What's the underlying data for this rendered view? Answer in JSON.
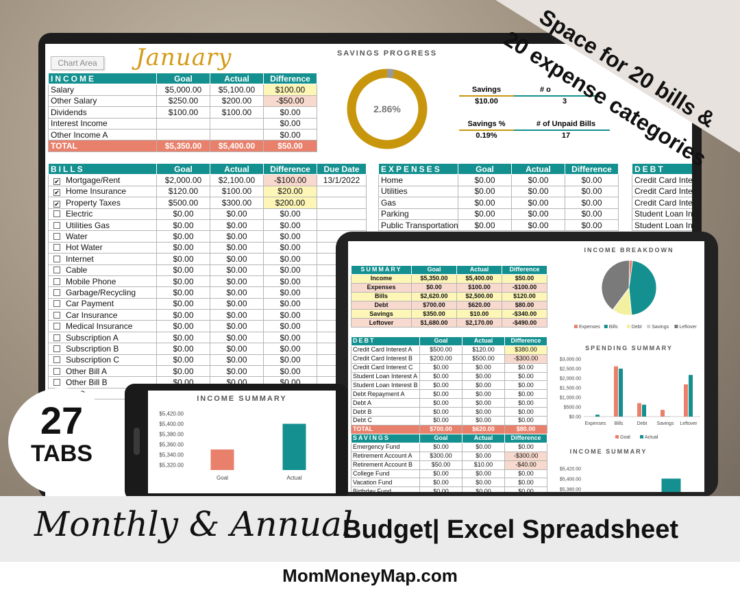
{
  "ribbon": {
    "line1": "Space for 20 bills &",
    "line2": "20 expense categories"
  },
  "badge": {
    "number": "27",
    "label": "TABS"
  },
  "banner": {
    "script_text": "Monthly & Annual",
    "main_text": "Budget| Excel Spreadsheet",
    "site": "MomMoneyMap.com"
  },
  "sheet": {
    "chart_area_label": "Chart Area",
    "month": "January",
    "savings_progress": {
      "title": "SAVINGS PROGRESS",
      "percent_label": "2.86%",
      "percent": 2.86,
      "ring_color": "#c8960c",
      "rest_color": "#999999"
    },
    "stats": {
      "savings_label": "Savings",
      "num_label": "# o",
      "savings_value": "$10.00",
      "num_value": "3",
      "savings_pct_label": "Savings %",
      "unpaid_label": "# of Unpaid Bills",
      "savings_pct_value": "0.19%",
      "unpaid_value": "17"
    },
    "income": {
      "headers": [
        "INCOME",
        "Goal",
        "Actual",
        "Difference"
      ],
      "rows": [
        [
          "Salary",
          "$5,000.00",
          "$5,100.00",
          "$100.00"
        ],
        [
          "Other Salary",
          "$250.00",
          "$200.00",
          "-$50.00"
        ],
        [
          "Dividends",
          "$100.00",
          "$100.00",
          "$0.00"
        ],
        [
          "Interest Income",
          "",
          "",
          "$0.00"
        ],
        [
          "Other Income A",
          "",
          "",
          "$0.00"
        ]
      ],
      "total": [
        "TOTAL",
        "$5,350.00",
        "$5,400.00",
        "$50.00"
      ]
    },
    "bills": {
      "headers": [
        "BILLS",
        "Goal",
        "Actual",
        "Difference",
        "Due Date"
      ],
      "rows": [
        {
          "check": "✔",
          "name": "Mortgage/Rent",
          "goal": "$2,000.00",
          "actual": "$2,100.00",
          "diff": "-$100.00",
          "due": "13/1/2022"
        },
        {
          "check": "✔",
          "name": "Home Insurance",
          "goal": "$120.00",
          "actual": "$100.00",
          "diff": "$20.00",
          "due": ""
        },
        {
          "check": "✔",
          "name": "Property Taxes",
          "goal": "$500.00",
          "actual": "$300.00",
          "diff": "$200.00",
          "due": ""
        },
        {
          "check": "",
          "name": "Electric",
          "goal": "$0.00",
          "actual": "$0.00",
          "diff": "$0.00",
          "due": ""
        },
        {
          "check": "",
          "name": "Utilities Gas",
          "goal": "$0.00",
          "actual": "$0.00",
          "diff": "$0.00",
          "due": ""
        },
        {
          "check": "",
          "name": "Water",
          "goal": "$0.00",
          "actual": "$0.00",
          "diff": "$0.00",
          "due": ""
        },
        {
          "check": "",
          "name": "Hot Water",
          "goal": "$0.00",
          "actual": "$0.00",
          "diff": "$0.00",
          "due": ""
        },
        {
          "check": "",
          "name": "Internet",
          "goal": "$0.00",
          "actual": "$0.00",
          "diff": "$0.00",
          "due": ""
        },
        {
          "check": "",
          "name": "Cable",
          "goal": "$0.00",
          "actual": "$0.00",
          "diff": "$0.00",
          "due": ""
        },
        {
          "check": "",
          "name": "Mobile Phone",
          "goal": "$0.00",
          "actual": "$0.00",
          "diff": "$0.00",
          "due": ""
        },
        {
          "check": "",
          "name": "Garbage/Recycling",
          "goal": "$0.00",
          "actual": "$0.00",
          "diff": "$0.00",
          "due": ""
        },
        {
          "check": "",
          "name": "Car Payment",
          "goal": "$0.00",
          "actual": "$0.00",
          "diff": "$0.00",
          "due": ""
        },
        {
          "check": "",
          "name": "Car Insurance",
          "goal": "$0.00",
          "actual": "$0.00",
          "diff": "$0.00",
          "due": ""
        },
        {
          "check": "",
          "name": "Medical Insurance",
          "goal": "$0.00",
          "actual": "$0.00",
          "diff": "$0.00",
          "due": ""
        },
        {
          "check": "",
          "name": "Subscription A",
          "goal": "$0.00",
          "actual": "$0.00",
          "diff": "$0.00",
          "due": ""
        },
        {
          "check": "",
          "name": "Subscription B",
          "goal": "$0.00",
          "actual": "$0.00",
          "diff": "$0.00",
          "due": ""
        },
        {
          "check": "",
          "name": "Subscription C",
          "goal": "$0.00",
          "actual": "$0.00",
          "diff": "$0.00",
          "due": ""
        },
        {
          "check": "",
          "name": "Other Bill A",
          "goal": "$0.00",
          "actual": "$0.00",
          "diff": "$0.00",
          "due": ""
        },
        {
          "check": "",
          "name": "Other Bill B",
          "goal": "$0.00",
          "actual": "$0.00",
          "diff": "$0.00",
          "due": ""
        },
        {
          "check": "",
          "name": "Bill C",
          "goal": "",
          "actual": "",
          "diff": "",
          "due": ""
        }
      ]
    },
    "expenses": {
      "headers": [
        "EXPENSES",
        "Goal",
        "Actual",
        "Difference"
      ],
      "rows": [
        [
          "Home",
          "$0.00",
          "$0.00",
          "$0.00"
        ],
        [
          "Utilities",
          "$0.00",
          "$0.00",
          "$0.00"
        ],
        [
          "Gas",
          "$0.00",
          "$0.00",
          "$0.00"
        ],
        [
          "Parking",
          "$0.00",
          "$0.00",
          "$0.00"
        ],
        [
          "Public Transportation",
          "$0.00",
          "$0.00",
          "$0.00"
        ]
      ]
    },
    "debt_partial": {
      "header": "DEBT",
      "rows": [
        "Credit Card Inte",
        "Credit Card Inte",
        "Credit Card Inte",
        "Student Loan In",
        "Student Loan In"
      ]
    }
  },
  "tablet": {
    "summary": {
      "headers": [
        "SUMMARY",
        "Goal",
        "Actual",
        "Difference"
      ],
      "rows": [
        [
          "Income",
          "$5,350.00",
          "$5,400.00",
          "$50.00"
        ],
        [
          "Expenses",
          "$0.00",
          "$100.00",
          "-$100.00"
        ],
        [
          "Bills",
          "$2,620.00",
          "$2,500.00",
          "$120.00"
        ],
        [
          "Debt",
          "$700.00",
          "$620.00",
          "$80.00"
        ],
        [
          "Savings",
          "$350.00",
          "$10.00",
          "-$340.00"
        ],
        [
          "Leftover",
          "$1,680.00",
          "$2,170.00",
          "-$490.00"
        ]
      ]
    },
    "debt": {
      "headers": [
        "DEBT",
        "Goal",
        "Actual",
        "Difference"
      ],
      "rows": [
        [
          "Credit Card Interest A",
          "$500.00",
          "$120.00",
          "$380.00"
        ],
        [
          "Credit Card Interest B",
          "$200.00",
          "$500.00",
          "-$300.00"
        ],
        [
          "Credit Card Interest C",
          "$0.00",
          "$0.00",
          "$0.00"
        ],
        [
          "Student Loan Interest A",
          "$0.00",
          "$0.00",
          "$0.00"
        ],
        [
          "Student Loan Interest B",
          "$0.00",
          "$0.00",
          "$0.00"
        ],
        [
          "Debt Repayment A",
          "$0.00",
          "$0.00",
          "$0.00"
        ],
        [
          "Debt A",
          "$0.00",
          "$0.00",
          "$0.00"
        ],
        [
          "Debt B",
          "$0.00",
          "$0.00",
          "$0.00"
        ],
        [
          "Debt C",
          "$0.00",
          "$0.00",
          "$0.00"
        ]
      ],
      "total": [
        "TOTAL",
        "$700.00",
        "$620.00",
        "$80.00"
      ]
    },
    "savings": {
      "headers": [
        "SAVINGS",
        "Goal",
        "Actual",
        "Difference"
      ],
      "rows": [
        [
          "Emergency Fund",
          "$0.00",
          "$0.00",
          "$0.00"
        ],
        [
          "Retirement Account A",
          "$300.00",
          "$0.00",
          "-$300.00"
        ],
        [
          "Retirement Account B",
          "$50.00",
          "$10.00",
          "-$40.00"
        ],
        [
          "College Fund",
          "$0.00",
          "$0.00",
          "$0.00"
        ],
        [
          "Vacation Fund",
          "$0.00",
          "$0.00",
          "$0.00"
        ],
        [
          "Birthday Fund",
          "$0.00",
          "$0.00",
          "$0.00"
        ]
      ]
    }
  },
  "colors": {
    "teal": "#13908f",
    "salmon": "#e9806b",
    "gold": "#c8960c",
    "yellow_cell": "#fdf6b7",
    "pink_cell": "#f8d9cd"
  },
  "chart_data": [
    {
      "type": "pie",
      "title": "INCOME BREAKDOWN",
      "categories": [
        "Expenses",
        "Bills",
        "Debt",
        "Savings",
        "Leftover"
      ],
      "values": [
        100,
        2500,
        620,
        10,
        2170
      ],
      "colors": [
        "#e9806b",
        "#13908f",
        "#f3f0a0",
        "#cfcfcf",
        "#7a7a7a"
      ],
      "legend": "bottom"
    },
    {
      "type": "bar",
      "title": "SPENDING SUMMARY",
      "categories": [
        "Expenses",
        "Bills",
        "Debt",
        "Savings",
        "Leftover"
      ],
      "series": [
        {
          "name": "Goal",
          "values": [
            0,
            2620,
            700,
            350,
            1680
          ],
          "color": "#e9806b"
        },
        {
          "name": "Actual",
          "values": [
            100,
            2500,
            620,
            10,
            2170
          ],
          "color": "#13908f"
        }
      ],
      "yticks": [
        "$0.00",
        "$500.00",
        "$1,000.00",
        "$1,500.00",
        "$2,000.00",
        "$2,500.00",
        "$3,000.00"
      ],
      "ylim": [
        0,
        3000
      ],
      "legend": "bottom"
    },
    {
      "type": "bar",
      "title": "INCOME SUMMARY",
      "categories": [
        "Goal",
        "Actual"
      ],
      "values": [
        5350,
        5400
      ],
      "colors": [
        "#e9806b",
        "#13908f"
      ],
      "yticks": [
        "$5,320.00",
        "$5,340.00",
        "$5,360.00",
        "$5,380.00",
        "$5,400.00",
        "$5,420.00"
      ],
      "ylim": [
        5310,
        5430
      ]
    }
  ]
}
